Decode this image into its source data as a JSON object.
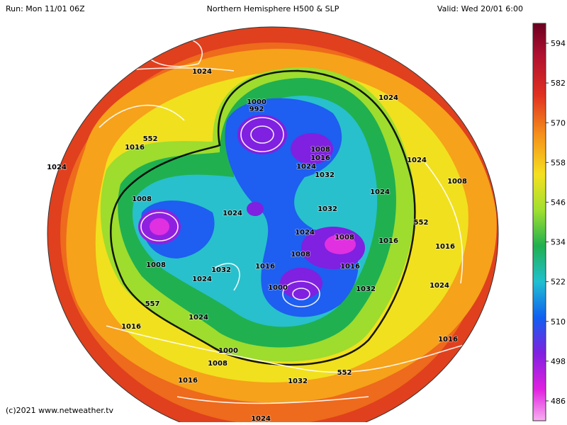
{
  "header": {
    "run": "Run: Mon 11/01 06Z",
    "title": "Northern Hemisphere H500 & SLP",
    "valid": "Valid: Wed 20/01 6:00"
  },
  "colorbar": {
    "ticks": [
      594,
      582,
      570,
      558,
      546,
      534,
      522,
      510,
      498,
      486
    ],
    "range": [
      480,
      600
    ]
  },
  "contour_labels": [
    "1024",
    "1000",
    "992",
    "552",
    "1016",
    "1024",
    "1008",
    "1016",
    "1024",
    "1032",
    "1024",
    "1024",
    "1008",
    "1024",
    "1008",
    "1024",
    "1032",
    "552",
    "1024",
    "1008",
    "1016",
    "1016",
    "1008",
    "1016",
    "1008",
    "1016",
    "1032",
    "1024",
    "1000",
    "1032",
    "1024",
    "557",
    "1024",
    "1016",
    "1016",
    "1000",
    "1008",
    "552",
    "1016",
    "1032",
    "1024"
  ],
  "footer": "(c)2021 www.netweather.tv"
}
